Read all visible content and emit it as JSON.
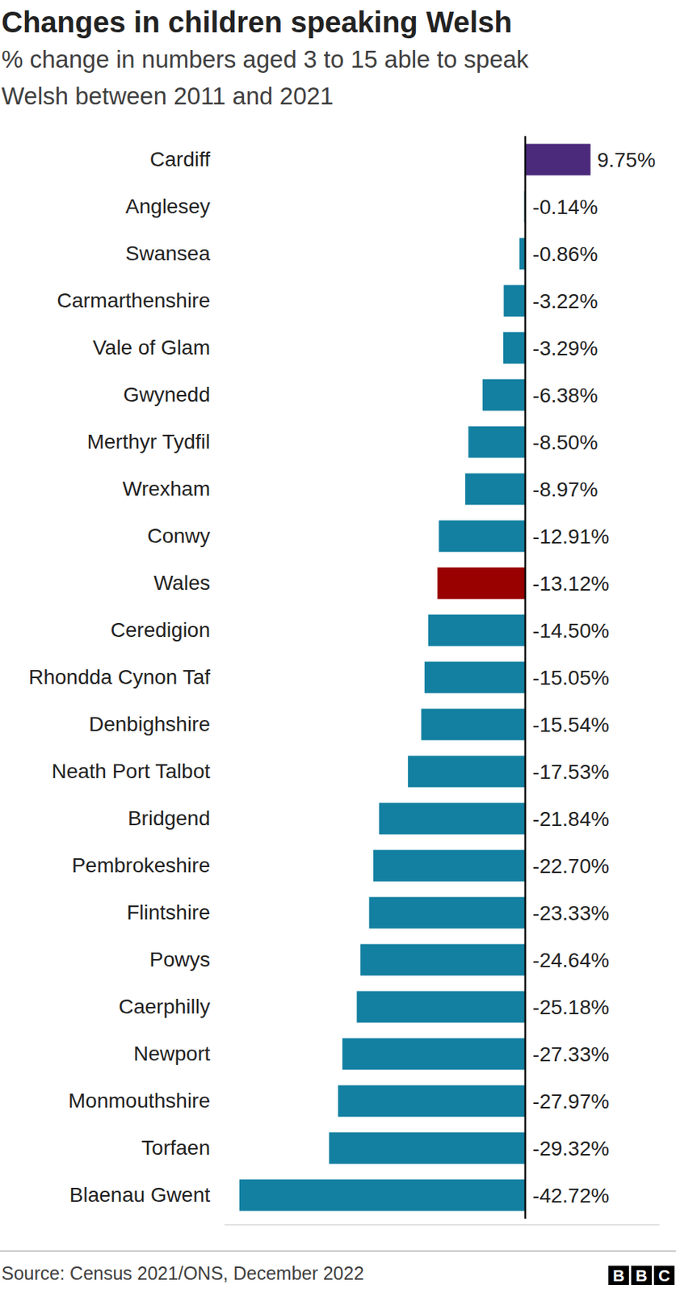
{
  "chart_data": {
    "type": "bar",
    "orientation": "horizontal",
    "title": "Changes in children speaking Welsh",
    "subtitle": [
      "% change in numbers aged 3 to 15 able to speak",
      "Welsh between 2011 and 2021"
    ],
    "categories": [
      "Cardiff",
      "Anglesey",
      "Swansea",
      "Carmarthenshire",
      "Vale of Glam",
      "Gwynedd",
      "Merthyr Tydfil",
      "Wrexham",
      "Conwy",
      "Wales",
      "Ceredigion",
      "Rhondda Cynon Taf",
      "Denbighshire",
      "Neath Port Talbot",
      "Bridgend",
      "Pembrokeshire",
      "Flintshire",
      "Powys",
      "Caerphilly",
      "Newport",
      "Monmouthshire",
      "Torfaen",
      "Blaenau Gwent"
    ],
    "values": [
      9.75,
      -0.14,
      -0.86,
      -3.22,
      -3.29,
      -6.38,
      -8.5,
      -8.97,
      -12.91,
      -13.12,
      -14.5,
      -15.05,
      -15.54,
      -17.53,
      -21.84,
      -22.7,
      -23.33,
      -24.64,
      -25.18,
      -27.33,
      -27.97,
      -29.32,
      -42.72
    ],
    "value_labels": [
      "9.75%",
      "-0.14%",
      "-0.86%",
      "-3.22%",
      "-3.29%",
      "-6.38%",
      "-8.50%",
      "-8.97%",
      "-12.91%",
      "-13.12%",
      "-14.50%",
      "-15.05%",
      "-15.54%",
      "-17.53%",
      "-21.84%",
      "-22.70%",
      "-23.33%",
      "-24.64%",
      "-25.18%",
      "-27.33%",
      "-27.97%",
      "-29.32%",
      "-42.72%"
    ],
    "colors": [
      "#4b2a7b",
      "#1380a1",
      "#1380a1",
      "#1380a1",
      "#1380a1",
      "#1380a1",
      "#1380a1",
      "#1380a1",
      "#1380a1",
      "#990000",
      "#1380a1",
      "#1380a1",
      "#1380a1",
      "#1380a1",
      "#1380a1",
      "#1380a1",
      "#1380a1",
      "#1380a1",
      "#1380a1",
      "#1380a1",
      "#1380a1",
      "#1380a1",
      "#1380a1"
    ],
    "xlim": [
      -45,
      20
    ],
    "xticks": [
      0
    ],
    "tick_labels": "y",
    "data_labels": true,
    "source": "Source: Census 2021/ONS, December 2022",
    "logo": [
      "B",
      "B",
      "C"
    ]
  }
}
